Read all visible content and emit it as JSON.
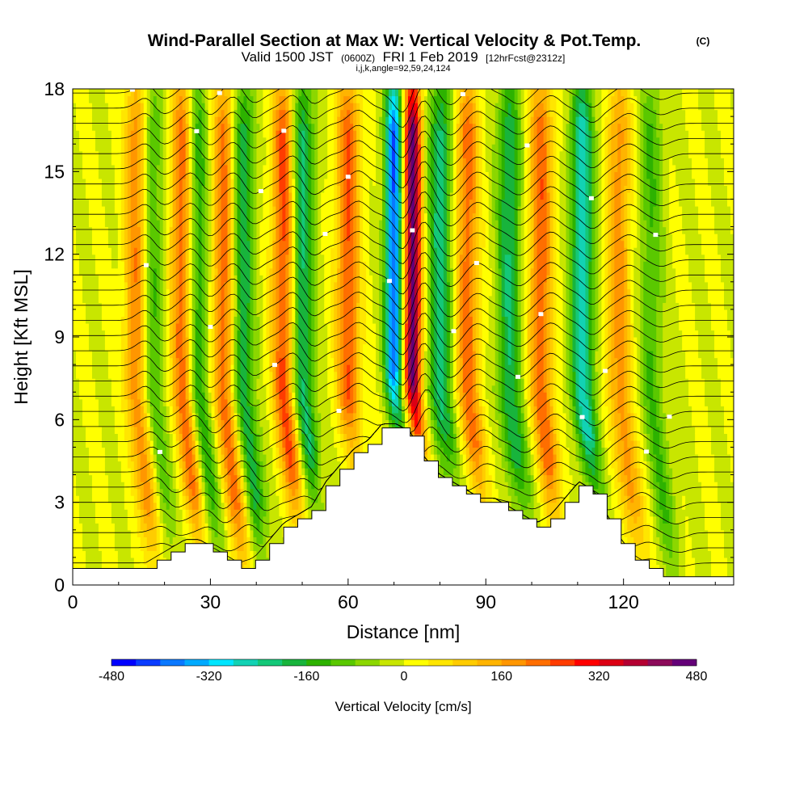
{
  "chart_data": {
    "type": "heatmap",
    "title": "Wind-Parallel Section at Max W: Vertical Velocity & Pot.Temp.",
    "title_mark": "(C)",
    "subtitle_parts": {
      "valid": "Valid 1500 JST",
      "utc": "(0600Z)",
      "date": "FRI 1 Feb 2019",
      "forecast": "[12hrFcst@2312z]"
    },
    "info_line": "i,j,k,angle=92,59,24,124",
    "xlabel": "Distance [nm]",
    "ylabel": "Height [Kft MSL]",
    "xlim": [
      0,
      144
    ],
    "ylim": [
      0,
      18
    ],
    "x_ticks": [
      "0",
      "30",
      "60",
      "90",
      "120"
    ],
    "y_ticks": [
      "0",
      "3",
      "6",
      "9",
      "12",
      "15",
      "18"
    ],
    "colorbar": {
      "label": "Vertical Velocity [cm/s]",
      "range": [
        -480,
        480
      ],
      "tick_labels": [
        "-480",
        "-320",
        "-160",
        "0",
        "160",
        "320",
        "480"
      ],
      "colors": [
        "#0000ff",
        "#0a3cff",
        "#0a78ff",
        "#00aaff",
        "#00e6ff",
        "#12d2b4",
        "#14c878",
        "#18b43c",
        "#2db200",
        "#5ac800",
        "#8cd700",
        "#c8e600",
        "#ffff00",
        "#ffe600",
        "#ffcc00",
        "#ffb400",
        "#ff9600",
        "#ff6e00",
        "#ff3c00",
        "#ff0000",
        "#dc0014",
        "#b40032",
        "#8c0a5a",
        "#640078"
      ]
    },
    "terrain_heights_kft": [
      0.6,
      0.6,
      0.6,
      0.6,
      0.6,
      0.6,
      0.9,
      1.2,
      1.5,
      1.5,
      1.2,
      0.9,
      0.6,
      0.9,
      1.5,
      2.1,
      2.4,
      2.7,
      3.6,
      4.2,
      4.8,
      5.1,
      5.7,
      5.7,
      5.4,
      4.5,
      3.9,
      3.6,
      3.3,
      3.0,
      3.0,
      2.7,
      2.4,
      2.1,
      2.4,
      3.0,
      3.6,
      3.3,
      2.4,
      1.5,
      0.9,
      0.6,
      0.3,
      0.3,
      0.3,
      0.3,
      0.3,
      0.3
    ],
    "w_series": [
      {
        "name": "updraft",
        "x_nm": 14,
        "amplitude_cms": 220
      },
      {
        "name": "downdraft",
        "x_nm": 17,
        "amplitude_cms": -150
      },
      {
        "name": "updraft",
        "x_nm": 24,
        "amplitude_cms": 250
      },
      {
        "name": "downdraft",
        "x_nm": 27,
        "amplitude_cms": -180
      },
      {
        "name": "updraft",
        "x_nm": 33,
        "amplitude_cms": 230
      },
      {
        "name": "downdraft",
        "x_nm": 37,
        "amplitude_cms": -200
      },
      {
        "name": "updraft",
        "x_nm": 46,
        "amplitude_cms": 260
      },
      {
        "name": "downdraft",
        "x_nm": 50,
        "amplitude_cms": -220
      },
      {
        "name": "updraft",
        "x_nm": 60,
        "amplitude_cms": 240
      },
      {
        "name": "downdraft",
        "x_nm": 70,
        "amplitude_cms": -400
      },
      {
        "name": "updraft",
        "x_nm": 74,
        "amplitude_cms": 460
      },
      {
        "name": "downdraft",
        "x_nm": 80,
        "amplitude_cms": -220
      },
      {
        "name": "updraft",
        "x_nm": 86,
        "amplitude_cms": 220
      },
      {
        "name": "downdraft",
        "x_nm": 95,
        "amplitude_cms": -200
      },
      {
        "name": "updraft",
        "x_nm": 102,
        "amplitude_cms": 230
      },
      {
        "name": "downdraft",
        "x_nm": 111,
        "amplitude_cms": -260
      },
      {
        "name": "updraft",
        "x_nm": 119,
        "amplitude_cms": 180
      },
      {
        "name": "downdraft",
        "x_nm": 126,
        "amplitude_cms": -120
      }
    ],
    "grid": false
  }
}
